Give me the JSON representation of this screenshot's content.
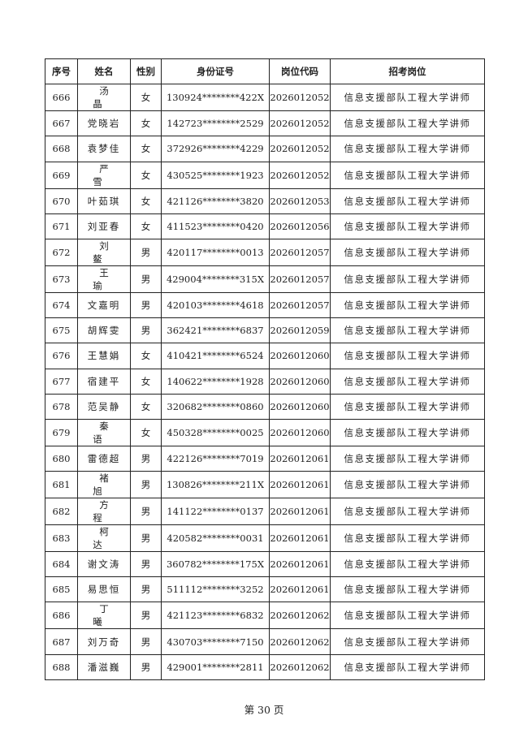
{
  "table": {
    "headers": [
      "序号",
      "姓名",
      "性别",
      "身份证号",
      "岗位代码",
      "招考岗位"
    ],
    "rows": [
      [
        "666",
        "汤晶",
        "女",
        "130924********422X",
        "2026012052",
        "信息支援部队工程大学讲师"
      ],
      [
        "667",
        "党晓岩",
        "女",
        "142723********2529",
        "2026012052",
        "信息支援部队工程大学讲师"
      ],
      [
        "668",
        "袁梦佳",
        "女",
        "372926********4229",
        "2026012052",
        "信息支援部队工程大学讲师"
      ],
      [
        "669",
        "严雪",
        "女",
        "430525********1923",
        "2026012052",
        "信息支援部队工程大学讲师"
      ],
      [
        "670",
        "叶茹琪",
        "女",
        "421126********3820",
        "2026012053",
        "信息支援部队工程大学讲师"
      ],
      [
        "671",
        "刘亚春",
        "女",
        "411523********0420",
        "2026012056",
        "信息支援部队工程大学讲师"
      ],
      [
        "672",
        "刘鳌",
        "男",
        "420117********0013",
        "2026012057",
        "信息支援部队工程大学讲师"
      ],
      [
        "673",
        "王瑜",
        "男",
        "429004********315X",
        "2026012057",
        "信息支援部队工程大学讲师"
      ],
      [
        "674",
        "文嘉明",
        "男",
        "420103********4618",
        "2026012057",
        "信息支援部队工程大学讲师"
      ],
      [
        "675",
        "胡辉雯",
        "男",
        "362421********6837",
        "2026012059",
        "信息支援部队工程大学讲师"
      ],
      [
        "676",
        "王慧娟",
        "女",
        "410421********6524",
        "2026012060",
        "信息支援部队工程大学讲师"
      ],
      [
        "677",
        "宿建平",
        "女",
        "140622********1928",
        "2026012060",
        "信息支援部队工程大学讲师"
      ],
      [
        "678",
        "范吴静",
        "女",
        "320682********0860",
        "2026012060",
        "信息支援部队工程大学讲师"
      ],
      [
        "679",
        "秦语",
        "女",
        "450328********0025",
        "2026012060",
        "信息支援部队工程大学讲师"
      ],
      [
        "680",
        "雷德超",
        "男",
        "422126********7019",
        "2026012061",
        "信息支援部队工程大学讲师"
      ],
      [
        "681",
        "褚旭",
        "男",
        "130826********211X",
        "2026012061",
        "信息支援部队工程大学讲师"
      ],
      [
        "682",
        "方程",
        "男",
        "141122********0137",
        "2026012061",
        "信息支援部队工程大学讲师"
      ],
      [
        "683",
        "柯达",
        "男",
        "420582********0031",
        "2026012061",
        "信息支援部队工程大学讲师"
      ],
      [
        "684",
        "谢文涛",
        "男",
        "360782********175X",
        "2026012061",
        "信息支援部队工程大学讲师"
      ],
      [
        "685",
        "易思恒",
        "男",
        "511112********3252",
        "2026012061",
        "信息支援部队工程大学讲师"
      ],
      [
        "686",
        "丁曦",
        "男",
        "421123********6832",
        "2026012062",
        "信息支援部队工程大学讲师"
      ],
      [
        "687",
        "刘万奇",
        "男",
        "430703********7150",
        "2026012062",
        "信息支援部队工程大学讲师"
      ],
      [
        "688",
        "潘滋巍",
        "男",
        "429001********2811",
        "2026012062",
        "信息支援部队工程大学讲师"
      ]
    ]
  },
  "footer": {
    "page_label": "第 30 页"
  }
}
